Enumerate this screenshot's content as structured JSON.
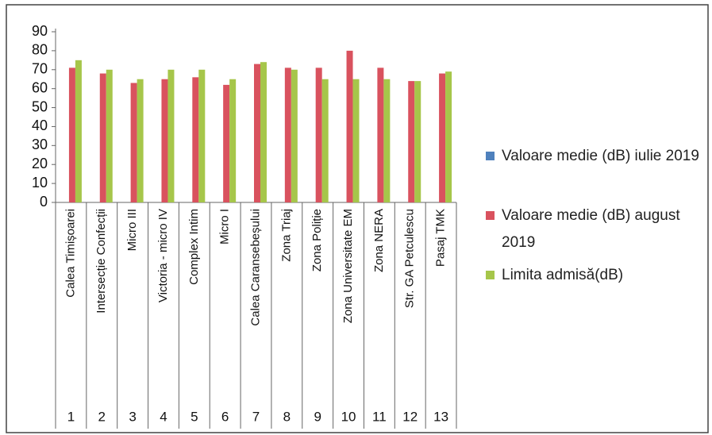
{
  "chart_data": {
    "type": "bar",
    "categories": [
      "Calea Timișoarei",
      "Intersecție Confecții",
      "Micro III",
      "Victoria - micro IV",
      "Complex Intim",
      "Micro I",
      "Calea Caransebeșului",
      "Zona Triaj",
      "Zona Poliție",
      "Zona Universitate EM",
      "Zona NERA",
      "Str. GA Petculescu",
      "Pasaj TMK"
    ],
    "category_numbers": [
      "1",
      "2",
      "3",
      "4",
      "5",
      "6",
      "7",
      "8",
      "9",
      "10",
      "11",
      "12",
      "13"
    ],
    "series": [
      {
        "name": "Valoare medie (dB) iulie 2019",
        "color": "#4f81bd",
        "values": [
          null,
          null,
          null,
          null,
          null,
          null,
          null,
          null,
          null,
          null,
          null,
          null,
          null
        ]
      },
      {
        "name": "Valoare medie (dB) august  2019",
        "color": "#d9525e",
        "values": [
          71,
          68,
          63,
          65,
          66,
          62,
          73,
          71,
          71,
          80,
          71,
          64,
          68
        ]
      },
      {
        "name": "Limita admisă(dB)",
        "color": "#a6c64a",
        "values": [
          75,
          70,
          65,
          70,
          70,
          65,
          74,
          70,
          65,
          65,
          65,
          64,
          69
        ]
      }
    ],
    "ylim": [
      0,
      90
    ],
    "yticks": [
      0,
      10,
      20,
      30,
      40,
      50,
      60,
      70,
      80,
      90
    ],
    "grid": false,
    "legend": "right"
  }
}
